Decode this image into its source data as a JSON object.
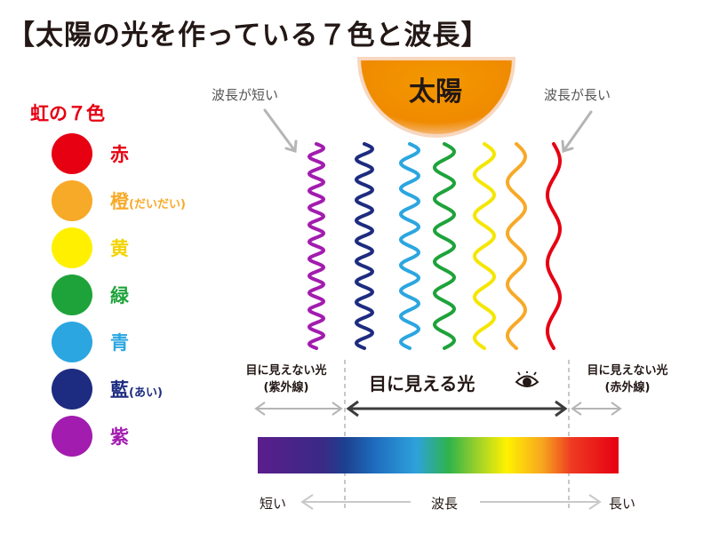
{
  "title": "【太陽の光を作っている７色と波長】",
  "sun": {
    "label": "太陽",
    "color": "#f39800"
  },
  "notes": {
    "short_wavelength": "波長が短い",
    "long_wavelength": "波長が長い"
  },
  "legend": {
    "heading": "虹の７色",
    "items": [
      {
        "label": "赤",
        "reading": "",
        "color": "#e60012"
      },
      {
        "label": "橙",
        "reading": "(だいだい)",
        "color": "#f7a928"
      },
      {
        "label": "黄",
        "reading": "",
        "color": "#fff000"
      },
      {
        "label": "緑",
        "reading": "",
        "color": "#1ea33a"
      },
      {
        "label": "青",
        "reading": "",
        "color": "#2ba6e1"
      },
      {
        "label": "藍",
        "reading": "(あい)",
        "color": "#1d2c80"
      },
      {
        "label": "紫",
        "reading": "",
        "color": "#a21caf"
      }
    ]
  },
  "waves": [
    {
      "color": "#a21caf",
      "cycles": 12
    },
    {
      "color": "#1d2c80",
      "cycles": 10
    },
    {
      "color": "#2ba6e1",
      "cycles": 8
    },
    {
      "color": "#1ea33a",
      "cycles": 6.5
    },
    {
      "color": "#fff000",
      "cycles": 5
    },
    {
      "color": "#f7a928",
      "cycles": 4
    },
    {
      "color": "#e60012",
      "cycles": 3
    }
  ],
  "regions": {
    "ultraviolet": {
      "line1": "目に見えない光",
      "line2": "(紫外線)"
    },
    "visible": {
      "label": "目に見える光"
    },
    "infrared": {
      "line1": "目に見えない光",
      "line2": "(赤外線)"
    }
  },
  "axis": {
    "short": "短い",
    "middle": "波長",
    "long": "長い"
  },
  "icons": [
    "eye-icon",
    "sun-icon",
    "arrow-icon"
  ]
}
